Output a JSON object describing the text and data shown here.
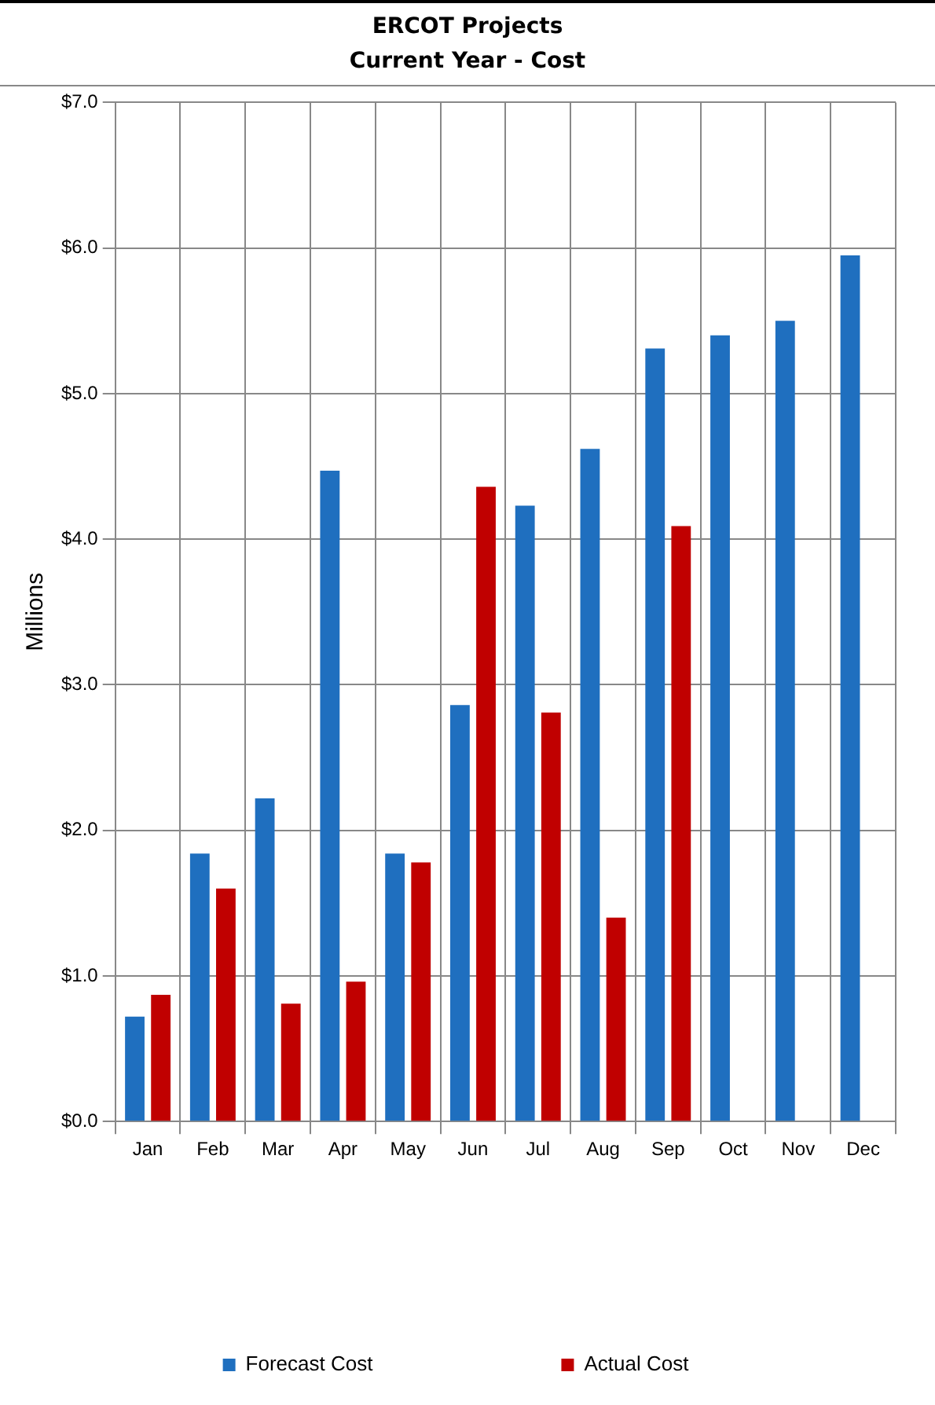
{
  "chart_data": {
    "type": "bar",
    "title": "ERCOT Projects",
    "subtitle": "Current Year - Cost",
    "ylabel": "Millions",
    "categories": [
      "Jan",
      "Feb",
      "Mar",
      "Apr",
      "May",
      "Jun",
      "Jul",
      "Aug",
      "Sep",
      "Oct",
      "Nov",
      "Dec"
    ],
    "series": [
      {
        "name": "Forecast Cost",
        "color": "#1f6fbf",
        "values": [
          0.72,
          1.84,
          2.22,
          4.47,
          1.84,
          2.86,
          4.23,
          4.62,
          5.31,
          5.4,
          5.5,
          5.95
        ]
      },
      {
        "name": "Actual Cost",
        "color": "#c00000",
        "values": [
          0.87,
          1.6,
          0.81,
          0.96,
          1.78,
          4.36,
          2.81,
          1.4,
          4.09,
          null,
          null,
          null
        ]
      }
    ],
    "ylim": [
      0,
      7
    ],
    "yticks": [
      {
        "value": 0,
        "label": "$0.0"
      },
      {
        "value": 1,
        "label": "$1.0"
      },
      {
        "value": 2,
        "label": "$2.0"
      },
      {
        "value": 3,
        "label": "$3.0"
      },
      {
        "value": 4,
        "label": "$4.0"
      },
      {
        "value": 5,
        "label": "$5.0"
      },
      {
        "value": 6,
        "label": "$6.0"
      },
      {
        "value": 7,
        "label": "$7.0"
      }
    ],
    "grid": true,
    "legend": "bottom"
  }
}
